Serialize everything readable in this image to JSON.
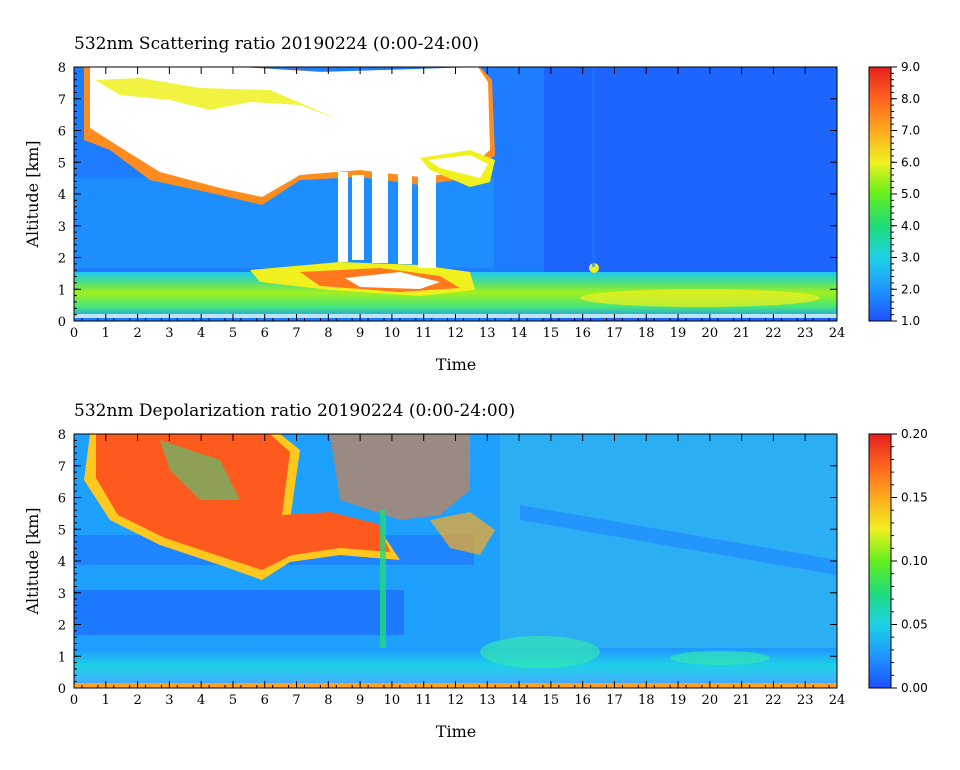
{
  "chart_data": [
    {
      "type": "heatmap",
      "title": "532nm Scattering ratio  20190224 (0:00-24:00)",
      "xlabel": "Time",
      "ylabel": "Altitude [km]",
      "xlim": [
        0,
        24
      ],
      "ylim": [
        0,
        8
      ],
      "x_ticks": [
        "0",
        "1",
        "2",
        "3",
        "4",
        "5",
        "6",
        "7",
        "8",
        "9",
        "10",
        "11",
        "12",
        "13",
        "14",
        "15",
        "16",
        "17",
        "18",
        "19",
        "20",
        "21",
        "22",
        "23",
        "24"
      ],
      "y_ticks": [
        "0",
        "1",
        "2",
        "3",
        "4",
        "5",
        "6",
        "7",
        "8"
      ],
      "colorbar": {
        "min": 1.0,
        "max": 9.0,
        "labels": [
          "1.0",
          "2.0",
          "3.0",
          "4.0",
          "5.0",
          "6.0",
          "7.0",
          "8.0",
          "9.0"
        ],
        "colors": [
          "#1e50ff",
          "#1e96ff",
          "#1ed2e6",
          "#1edc7a",
          "#64f01e",
          "#f0f01e",
          "#ffaa1e",
          "#ff641e",
          "#e61e1e"
        ]
      },
      "saturated_color": "#ffffff",
      "features": [
        {
          "name": "boundary layer aerosol",
          "x": [
            0,
            24
          ],
          "y": [
            0.2,
            1.5
          ],
          "value": 4.0
        },
        {
          "name": "elevated dust layer",
          "x": [
            5.7,
            13
          ],
          "y": [
            1.0,
            1.7
          ],
          "value": 6.5
        },
        {
          "name": "cirrus cloud",
          "x": [
            0.3,
            13.1
          ],
          "y": [
            3.5,
            8.0
          ],
          "value": 9.0
        },
        {
          "name": "cloud fall streaks",
          "x": [
            8.2,
            11.6
          ],
          "y": [
            1.7,
            5.2
          ],
          "value": 9.0
        }
      ]
    },
    {
      "type": "heatmap",
      "title": "532nm Depolarization ratio  20190224 (0:00-24:00)",
      "xlabel": "Time",
      "ylabel": "Altitude [km]",
      "xlim": [
        0,
        24
      ],
      "ylim": [
        0,
        8
      ],
      "x_ticks": [
        "0",
        "1",
        "2",
        "3",
        "4",
        "5",
        "6",
        "7",
        "8",
        "9",
        "10",
        "11",
        "12",
        "13",
        "14",
        "15",
        "16",
        "17",
        "18",
        "19",
        "20",
        "21",
        "22",
        "23",
        "24"
      ],
      "y_ticks": [
        "0",
        "1",
        "2",
        "3",
        "4",
        "5",
        "6",
        "7",
        "8"
      ],
      "colorbar": {
        "min": 0.0,
        "max": 0.2,
        "labels": [
          "0.00",
          "0.05",
          "0.10",
          "0.15",
          "0.20"
        ],
        "colors": [
          "#1e50ff",
          "#1e96ff",
          "#1ed2e6",
          "#1edc7a",
          "#64f01e",
          "#f0f01e",
          "#ffaa1e",
          "#ff641e",
          "#e61e1e"
        ]
      },
      "saturated_color": "#ffffff",
      "features": [
        {
          "name": "low-level aerosol",
          "x": [
            0,
            24
          ],
          "y": [
            0.2,
            1.3
          ],
          "value": 0.05
        },
        {
          "name": "ice cloud",
          "x": [
            0.5,
            10
          ],
          "y": [
            3.8,
            8.0
          ],
          "value": 0.2
        },
        {
          "name": "speckled upper cloud",
          "x": [
            8,
            13
          ],
          "y": [
            5.0,
            8.0
          ],
          "value": 0.2
        },
        {
          "name": "fall streak",
          "x": [
            9.6,
            9.9
          ],
          "y": [
            1.4,
            5.0
          ],
          "value": 0.08
        }
      ]
    }
  ]
}
